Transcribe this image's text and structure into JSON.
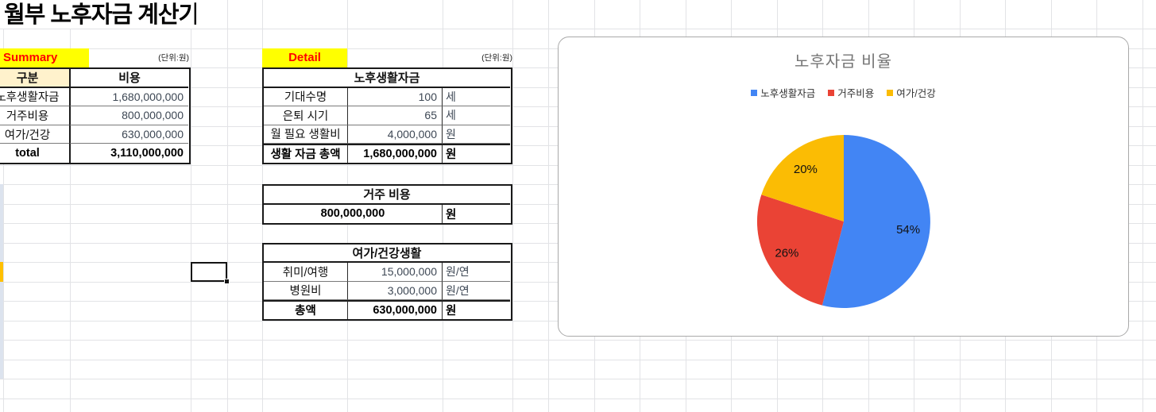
{
  "sheet_title": "월부 노후자금 계산기",
  "summary": {
    "label": "Summary",
    "unit_note": "(단위:원)",
    "headers": {
      "col1": "구분",
      "col2": "비용"
    },
    "rows": [
      {
        "label": "노후생활자금",
        "value": "1,680,000,000"
      },
      {
        "label": "거주비용",
        "value": "800,000,000"
      },
      {
        "label": "여가/건강",
        "value": "630,000,000"
      }
    ],
    "total": {
      "label": "total",
      "value": "3,110,000,000"
    }
  },
  "detail": {
    "label": "Detail",
    "unit_note": "(단위:원)",
    "tables": [
      {
        "title": "노후생활자금",
        "rows": [
          {
            "label": "기대수명",
            "value": "100",
            "unit": "세"
          },
          {
            "label": "은퇴 시기",
            "value": "65",
            "unit": "세"
          },
          {
            "label": "월 필요 생활비",
            "value": "4,000,000",
            "unit": "원"
          },
          {
            "label": "생활 자금 총액",
            "value": "1,680,000,000",
            "unit": "원"
          }
        ]
      },
      {
        "title": "거주 비용",
        "rows": [
          {
            "label": "",
            "value": "800,000,000",
            "unit": "원"
          }
        ]
      },
      {
        "title": "여가/건강생활",
        "rows": [
          {
            "label": "취미/여행",
            "value": "15,000,000",
            "unit": "원/연"
          },
          {
            "label": "병원비",
            "value": "3,000,000",
            "unit": "원/연"
          },
          {
            "label": "총액",
            "value": "630,000,000",
            "unit": "원"
          }
        ]
      }
    ]
  },
  "chart_data": {
    "type": "pie",
    "title": "노후자금 비율",
    "categories": [
      "노후생활자금",
      "거주비용",
      "여가/건강"
    ],
    "values": [
      54,
      26,
      20
    ],
    "labels": [
      "54%",
      "26%",
      "20%"
    ],
    "colors": [
      "#4285F4",
      "#EA4335",
      "#FBBC04"
    ],
    "legend_position": "top",
    "title_color": "#757575",
    "rotation_deg": 0,
    "direction": "clockwise"
  },
  "colors": {
    "section_label_bg": "#ffff00",
    "section_label_text": "#ff0000",
    "header_cream": "#fff2cc",
    "sliver_blue": "#dce3ee",
    "sliver_orange": "#ffc000",
    "gridline": "#e2e3e6",
    "value_text": "#3d4754"
  }
}
